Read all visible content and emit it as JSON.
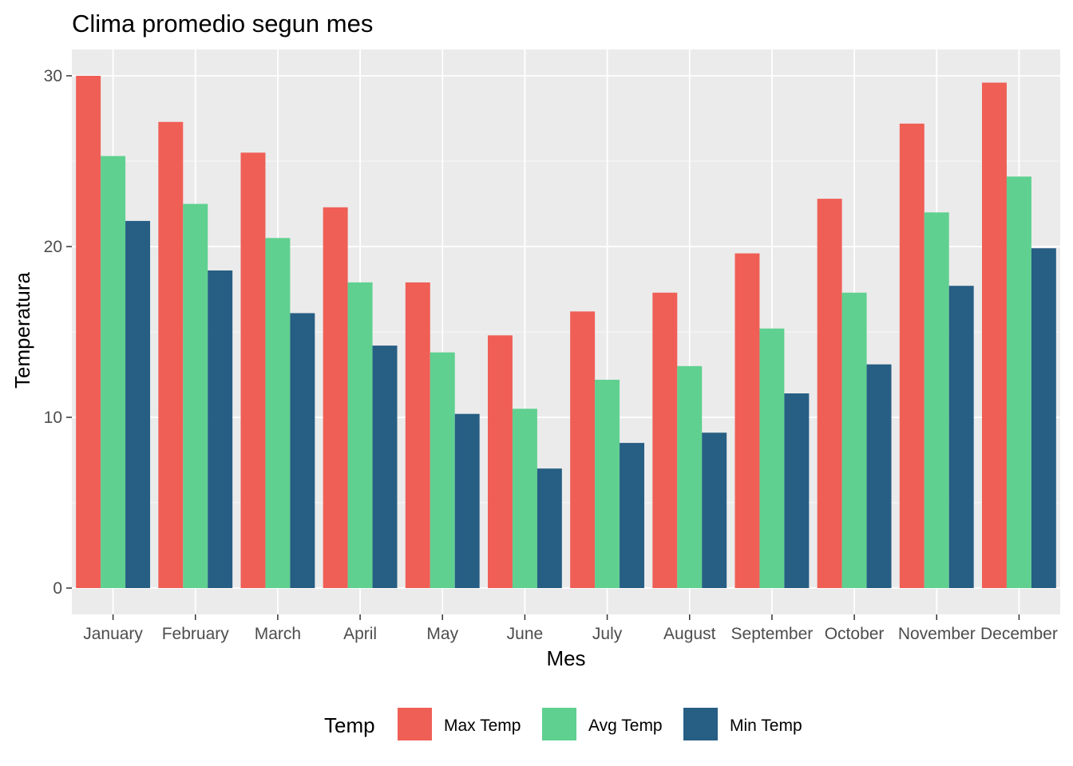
{
  "chart_data": {
    "type": "bar",
    "title": "Clima promedio segun mes",
    "xlabel": "Mes",
    "ylabel": "Temperatura",
    "ylim": [
      -1.5,
      31.6
    ],
    "yticks": [
      0,
      10,
      20,
      30
    ],
    "grid": true,
    "legend": {
      "title": "Temp",
      "position": "bottom"
    },
    "categories": [
      "January",
      "February",
      "March",
      "April",
      "May",
      "June",
      "July",
      "August",
      "September",
      "October",
      "November",
      "December"
    ],
    "series": [
      {
        "name": "Max Temp",
        "color": "#ef5f56",
        "values": [
          30.0,
          27.3,
          25.5,
          22.3,
          17.9,
          14.8,
          16.2,
          17.3,
          19.6,
          22.8,
          27.2,
          29.6
        ]
      },
      {
        "name": "Avg Temp",
        "color": "#5fd090",
        "values": [
          25.3,
          22.5,
          20.5,
          17.9,
          13.8,
          10.5,
          12.2,
          13.0,
          15.2,
          17.3,
          22.0,
          24.1
        ]
      },
      {
        "name": "Min Temp",
        "color": "#275e84",
        "values": [
          21.5,
          18.6,
          16.1,
          14.2,
          10.2,
          7.0,
          8.5,
          9.1,
          11.4,
          13.1,
          17.7,
          19.9
        ]
      }
    ]
  }
}
